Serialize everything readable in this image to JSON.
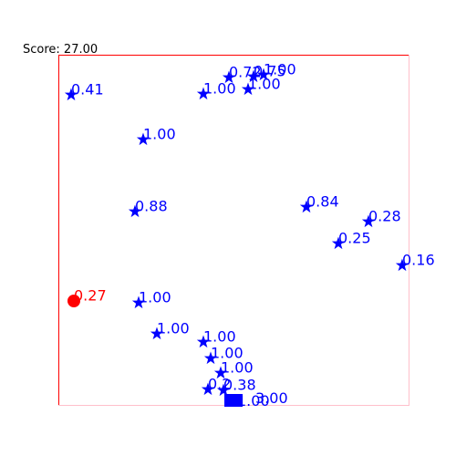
{
  "hud": {
    "score_text": "Score: 27.00"
  },
  "colors": {
    "star": "#0000ff",
    "player": "#ff0000",
    "block": "#0000ff",
    "frame_top_left": "#ff0000",
    "frame_bottom_right": "#ffc0cb",
    "label": "#0000ff",
    "player_label": "#ff0000"
  },
  "icons": {
    "star": "star-icon",
    "player": "player-dot-icon",
    "block": "square-block-icon"
  },
  "stars": [
    {
      "value": "0.41"
    },
    {
      "value": "1.00"
    },
    {
      "value": "0.72"
    },
    {
      "value": "1.00"
    },
    {
      "value": "0.75"
    },
    {
      "value": "1.00"
    },
    {
      "value": "1.00"
    },
    {
      "value": "0.88"
    },
    {
      "value": "0.84"
    },
    {
      "value": "0.28"
    },
    {
      "value": "0.25"
    },
    {
      "value": "0.16"
    },
    {
      "value": "1.00"
    },
    {
      "value": "1.00"
    },
    {
      "value": "1.00"
    },
    {
      "value": "1.00"
    },
    {
      "value": "1.00"
    },
    {
      "value": "0.2"
    },
    {
      "value": "0.38"
    }
  ],
  "player": {
    "value": "0.27"
  },
  "blocks": [
    {
      "value": "1.00"
    },
    {
      "value": "3.00"
    }
  ]
}
